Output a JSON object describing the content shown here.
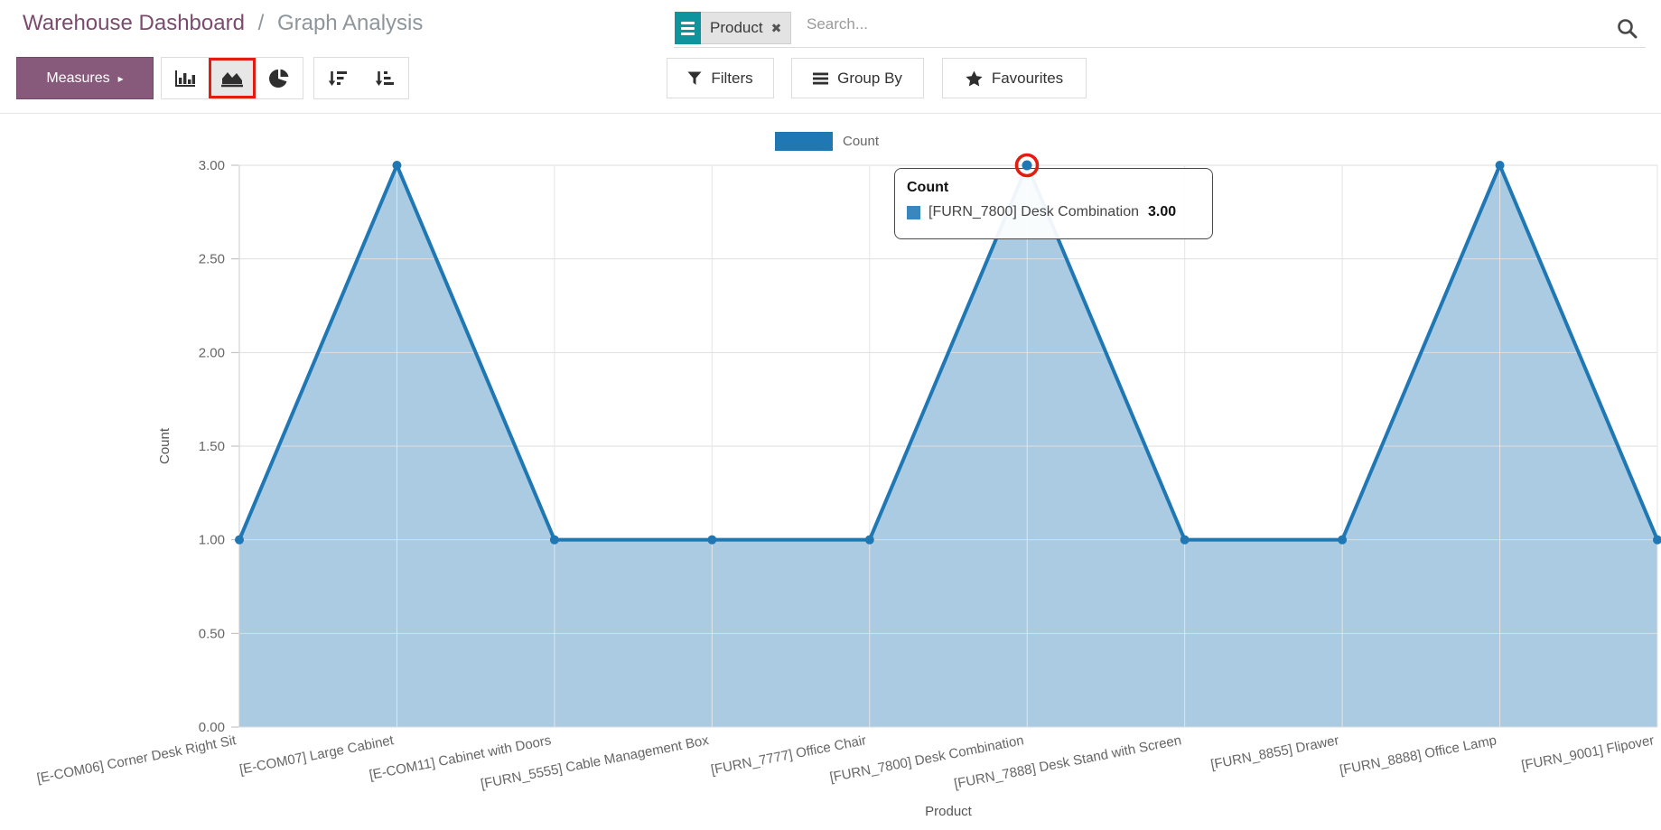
{
  "breadcrumb": {
    "primary": "Warehouse Dashboard",
    "separator": "/",
    "secondary": "Graph Analysis"
  },
  "search": {
    "facet_label": "Product",
    "facet_remove_glyph": "✖",
    "placeholder": "Search..."
  },
  "toolbar": {
    "measures_label": "Measures",
    "measures_caret": "▸",
    "filters_label": "Filters",
    "group_by_label": "Group By",
    "favourites_label": "Favourites"
  },
  "legend": {
    "label": "Count"
  },
  "tooltip": {
    "title": "Count",
    "series_label": "[FURN_7800] Desk Combination",
    "value": "3.00"
  },
  "colors": {
    "accent_purple": "#875A7B",
    "breadcrumb_purple": "#7b4b6e",
    "facet_teal": "#0f939d",
    "series_blue": "#1f77b4",
    "series_fill": "rgba(31,119,180,0.38)",
    "highlight_red": "#e11d12"
  },
  "chart_data": {
    "type": "area",
    "title": "",
    "xlabel": "Product",
    "ylabel": "Count",
    "legend_position": "top",
    "grid": true,
    "categories": [
      "[E-COM06] Corner Desk Right Sit",
      "[E-COM07] Large Cabinet",
      "[E-COM11] Cabinet with Doors",
      "[FURN_5555] Cable Management Box",
      "[FURN_7777] Office Chair",
      "[FURN_7800] Desk Combination",
      "[FURN_7888] Desk Stand with Screen",
      "[FURN_8855] Drawer",
      "[FURN_8888] Office Lamp",
      "[FURN_9001] Flipover"
    ],
    "series": [
      {
        "name": "Count",
        "values": [
          1,
          3,
          1,
          1,
          1,
          3,
          1,
          1,
          3,
          1
        ]
      }
    ],
    "values": [
      1,
      3,
      1,
      1,
      1,
      3,
      1,
      1,
      3,
      1
    ],
    "ylim": [
      0,
      3
    ],
    "ytick_step": 0.5,
    "yticks": [
      "0.00",
      "0.50",
      "1.00",
      "1.50",
      "2.00",
      "2.50",
      "3.00"
    ],
    "line_color": "#1f77b4",
    "fill_color": "rgba(31,119,180,0.38)",
    "highlighted_index": 5
  }
}
